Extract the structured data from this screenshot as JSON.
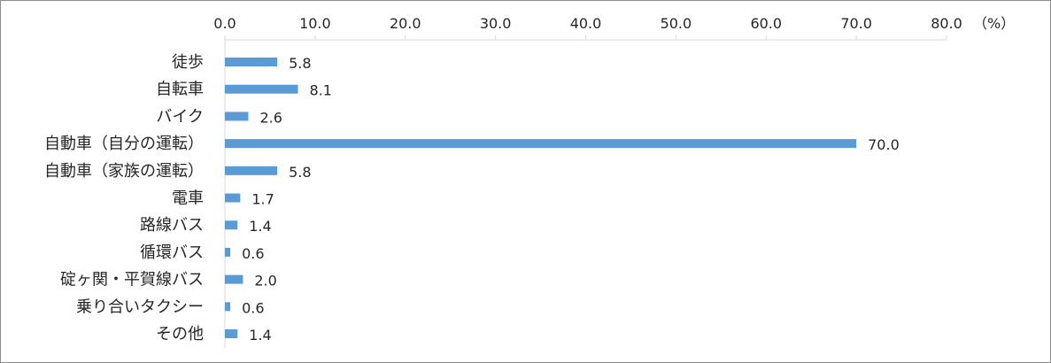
{
  "chart_data": {
    "type": "bar",
    "orientation": "horizontal",
    "categories": [
      "徒歩",
      "自転車",
      "バイク",
      "自動車（自分の運転）",
      "自動車（家族の運転）",
      "電車",
      "路線バス",
      "循環バス",
      "碇ヶ関・平賀線バス",
      "乗り合いタクシー",
      "その他"
    ],
    "values": [
      5.8,
      8.1,
      2.6,
      70.0,
      5.8,
      1.7,
      1.4,
      0.6,
      2.0,
      0.6,
      1.4
    ],
    "value_labels": [
      "5.8",
      "8.1",
      "2.6",
      "70.0",
      "5.8",
      "1.7",
      "1.4",
      "0.6",
      "2.0",
      "0.6",
      "1.4"
    ],
    "xlim": [
      0,
      80
    ],
    "x_ticks": [
      "0.0",
      "10.0",
      "20.0",
      "30.0",
      "40.0",
      "50.0",
      "60.0",
      "70.0",
      "80.0"
    ],
    "x_unit": "（%）",
    "axis_position": "top",
    "grid": false,
    "bar_color": "#5b9bd5"
  }
}
